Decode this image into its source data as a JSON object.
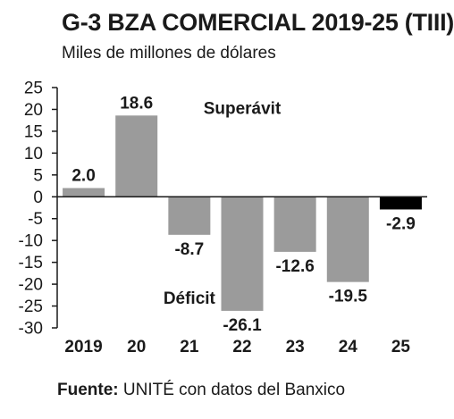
{
  "chart_data": {
    "type": "bar",
    "title": "G-3 BZA COMERCIAL 2019-25 (TIII)",
    "subtitle": "Miles de millones de dólares",
    "categories": [
      "2019",
      "20",
      "21",
      "22",
      "23",
      "24",
      "25"
    ],
    "values": [
      2.0,
      18.6,
      -8.7,
      -26.1,
      -12.6,
      -19.5,
      -2.9
    ],
    "value_labels": [
      "2.0",
      "18.6",
      "-8.7",
      "-26.1",
      "-12.6",
      "-19.5",
      "-2.9"
    ],
    "highlight_index": 6,
    "ylim": [
      -30,
      25
    ],
    "yticks": [
      25,
      20,
      15,
      10,
      5,
      0,
      -5,
      -10,
      -15,
      -20,
      -25,
      -30
    ],
    "ytick_labels": [
      "25",
      "20",
      "15",
      "10",
      "5",
      "0",
      "-5",
      "-10",
      "-15",
      "-20",
      "-25",
      "-30"
    ],
    "annotations": [
      {
        "text": "Superávit",
        "x": "22",
        "y": 19
      },
      {
        "text": "Déficit",
        "x": "21",
        "y": -24.5
      }
    ],
    "colors": {
      "bar": "#9b9b9b",
      "highlight": "#000000",
      "axis": "#1a1a1a"
    },
    "grid": false,
    "legend": "none"
  },
  "source": {
    "label": "Fuente:",
    "text": " UNITÉ con datos del Banxico"
  }
}
